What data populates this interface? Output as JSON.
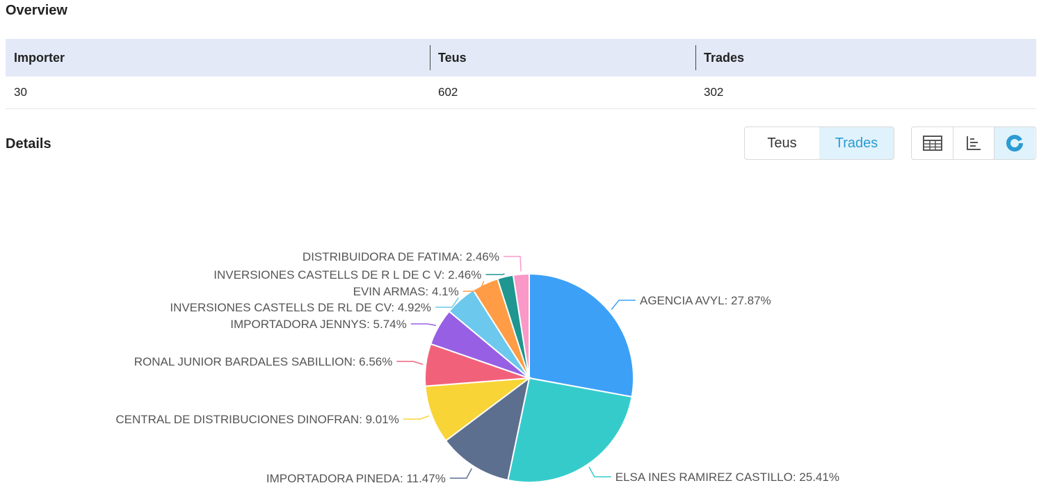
{
  "overview": {
    "title": "Overview",
    "columns": [
      "Importer",
      "Teus",
      "Trades"
    ],
    "values": [
      "30",
      "602",
      "302"
    ]
  },
  "details": {
    "title": "Details",
    "metric_options": [
      "Teus",
      "Trades"
    ],
    "selected_metric": "Trades",
    "view_options": [
      {
        "icon": "table-icon",
        "active": false
      },
      {
        "icon": "bar-chart-icon",
        "active": false
      },
      {
        "icon": "pie-chart-icon",
        "active": true
      }
    ]
  },
  "colors": {
    "accent": "#2b9bd3",
    "header_bg": "#e3e9f7"
  },
  "chart_data": {
    "type": "pie",
    "unit": "%",
    "slices": [
      {
        "name": "AGENCIA AVYL",
        "value": 27.87,
        "color": "#3ca0f7"
      },
      {
        "name": "ELSA INES RAMIREZ CASTILLO",
        "value": 25.41,
        "color": "#36cbcb"
      },
      {
        "name": "IMPORTADORA PINEDA",
        "value": 11.47,
        "color": "#5c6f8e"
      },
      {
        "name": "CENTRAL DE DISTRIBUCIONES DINOFRAN",
        "value": 9.01,
        "color": "#f8d437"
      },
      {
        "name": "RONAL JUNIOR BARDALES SABILLION",
        "value": 6.56,
        "color": "#f1627a"
      },
      {
        "name": "IMPORTADORA JENNYS",
        "value": 5.74,
        "color": "#975fe4"
      },
      {
        "name": "INVERSIONES CASTELLS DE RL DE CV",
        "value": 4.92,
        "color": "#6cc8ec"
      },
      {
        "name": "EVIN ARMAS",
        "value": 4.1,
        "color": "#ff9c45"
      },
      {
        "name": "INVERSIONES CASTELLS DE R L DE C V",
        "value": 2.46,
        "color": "#1f9690"
      },
      {
        "name": "DISTRIBUIDORA DE FATIMA",
        "value": 2.46,
        "color": "#fa98c8"
      }
    ]
  }
}
